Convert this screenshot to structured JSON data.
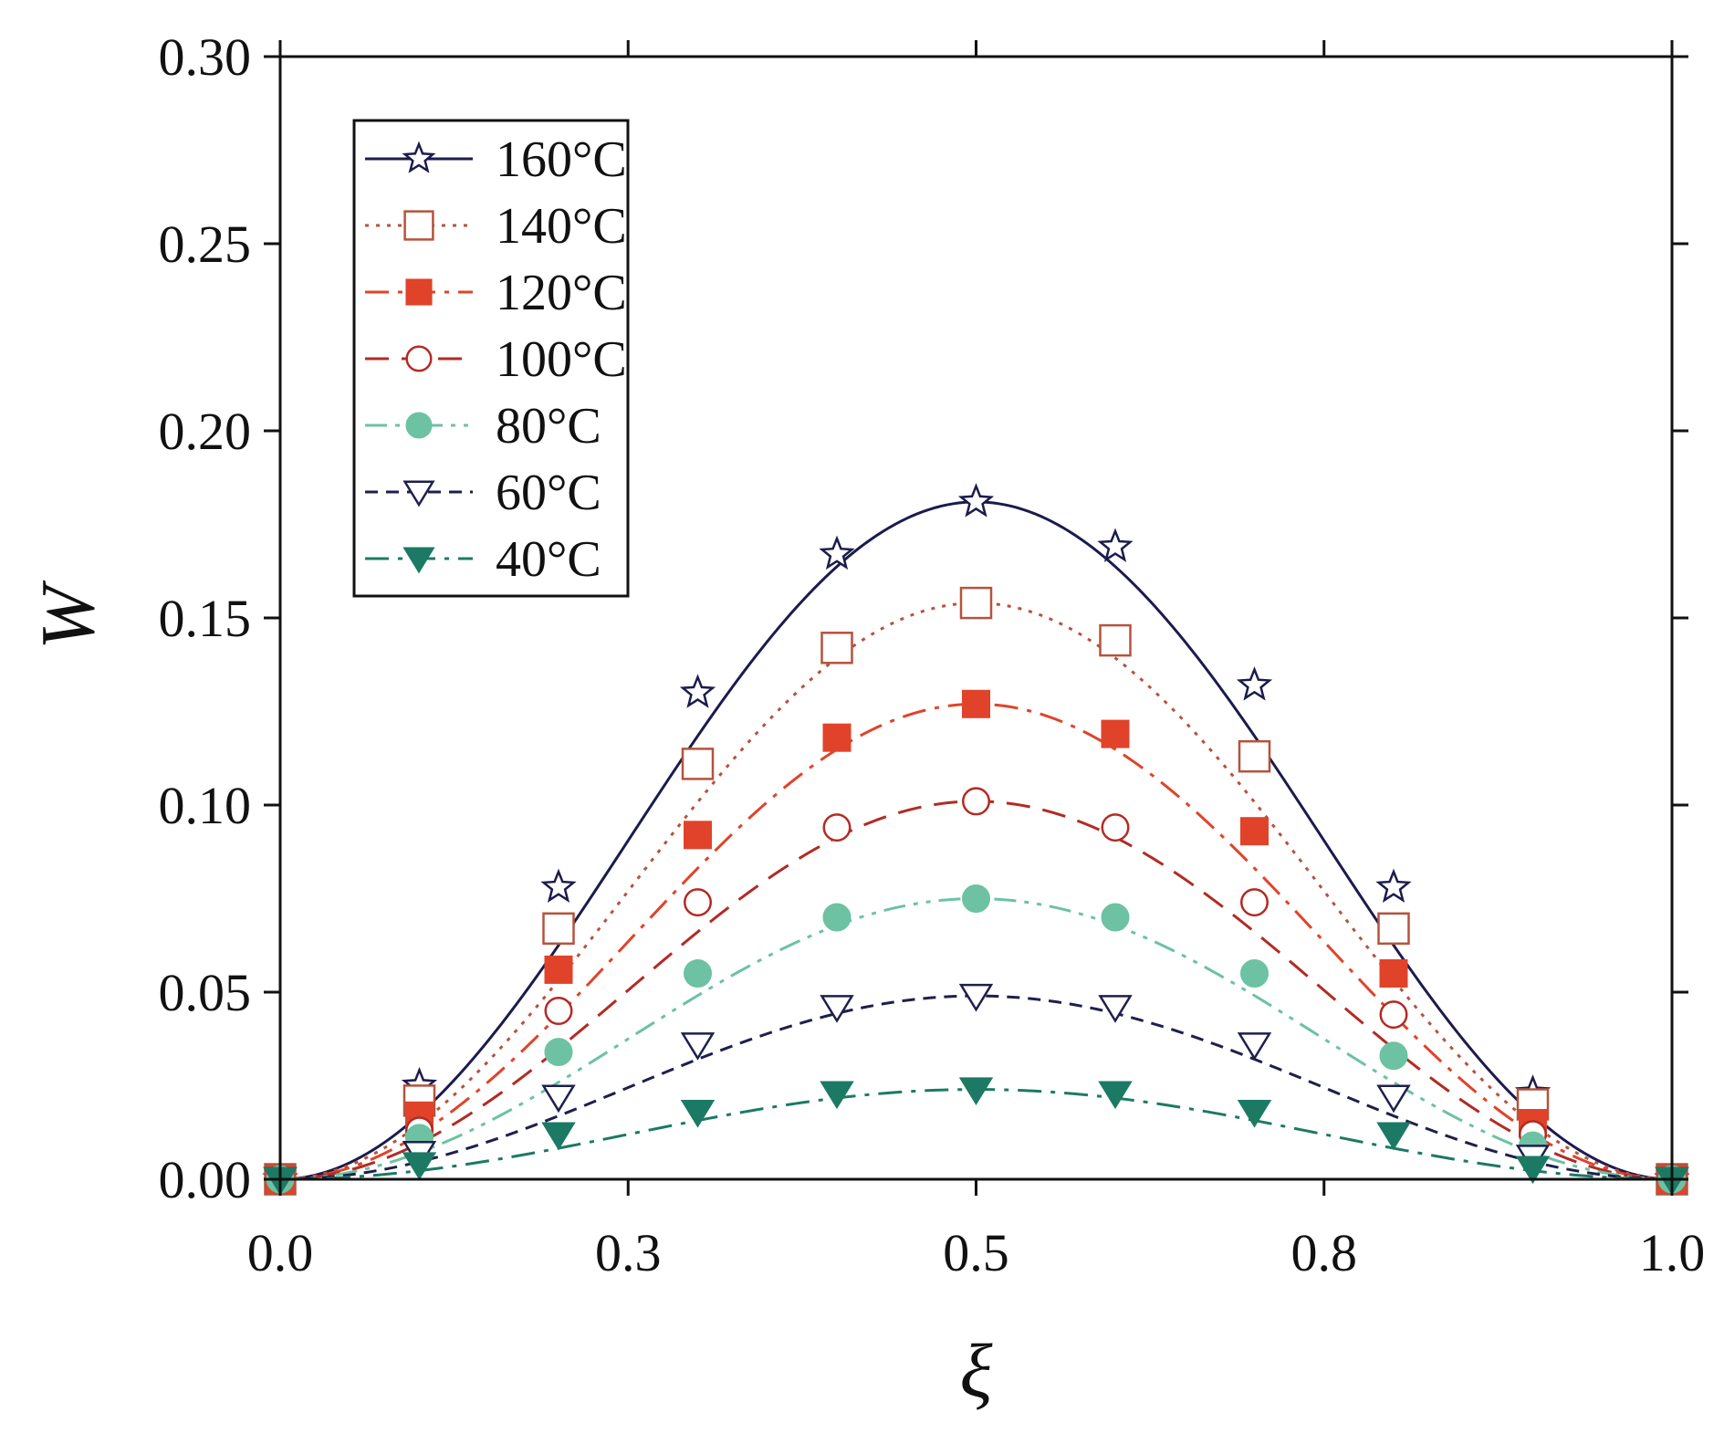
{
  "chart_data": {
    "type": "line",
    "title": "",
    "xlabel": "ξ",
    "ylabel": "W",
    "xlim": [
      0.0,
      1.0
    ],
    "ylim": [
      0.0,
      0.3
    ],
    "xticks": [
      0.0,
      0.25,
      0.5,
      0.75,
      1.0
    ],
    "xtick_labels": [
      "0.0",
      "0.3",
      "0.5",
      "0.8",
      "1.0"
    ],
    "yticks": [
      0.0,
      0.05,
      0.1,
      0.15,
      0.2,
      0.25,
      0.3
    ],
    "ytick_labels": [
      "0.00",
      "0.05",
      "0.10",
      "0.15",
      "0.20",
      "0.25",
      "0.30"
    ],
    "grid": false,
    "legend_position": "top-left",
    "x": [
      0.0,
      0.1,
      0.2,
      0.3,
      0.4,
      0.5,
      0.6,
      0.7,
      0.8,
      0.9,
      1.0
    ],
    "series": [
      {
        "name": "160°C",
        "color": "#1b1b4d",
        "dash": "solid",
        "marker": "star-open",
        "peak": 0.181,
        "values": [
          0.0,
          0.025,
          0.078,
          0.13,
          0.167,
          0.181,
          0.169,
          0.132,
          0.078,
          0.023,
          0.0
        ]
      },
      {
        "name": "140°C",
        "color": "#b5533c",
        "dash": "dotted",
        "marker": "square-open",
        "peak": 0.154,
        "values": [
          0.0,
          0.021,
          0.067,
          0.111,
          0.142,
          0.154,
          0.144,
          0.113,
          0.067,
          0.02,
          0.0
        ]
      },
      {
        "name": "120°C",
        "color": "#e0432a",
        "dash": "dashdot",
        "marker": "square-filled",
        "peak": 0.127,
        "values": [
          0.0,
          0.017,
          0.056,
          0.092,
          0.118,
          0.127,
          0.119,
          0.093,
          0.055,
          0.015,
          0.0
        ]
      },
      {
        "name": "100°C",
        "color": "#b22b24",
        "dash": "dashed",
        "marker": "circle-open",
        "peak": 0.101,
        "values": [
          0.0,
          0.013,
          0.045,
          0.074,
          0.094,
          0.101,
          0.094,
          0.074,
          0.044,
          0.012,
          0.0
        ]
      },
      {
        "name": "80°C",
        "color": "#6cc2a2",
        "dash": "dashdotdot",
        "marker": "circle-filled",
        "peak": 0.075,
        "values": [
          0.0,
          0.011,
          0.034,
          0.055,
          0.07,
          0.075,
          0.07,
          0.055,
          0.033,
          0.009,
          0.0
        ]
      },
      {
        "name": "60°C",
        "color": "#1f1f4d",
        "dash": "shortdash",
        "marker": "triangle-down-open",
        "peak": 0.049,
        "values": [
          0.0,
          0.007,
          0.022,
          0.036,
          0.046,
          0.049,
          0.046,
          0.036,
          0.022,
          0.006,
          0.0
        ]
      },
      {
        "name": "40°C",
        "color": "#1c7a64",
        "dash": "dashdot",
        "marker": "triangle-down-filled",
        "peak": 0.024,
        "values": [
          0.0,
          0.004,
          0.012,
          0.018,
          0.023,
          0.024,
          0.023,
          0.018,
          0.012,
          0.003,
          0.0
        ]
      }
    ]
  }
}
